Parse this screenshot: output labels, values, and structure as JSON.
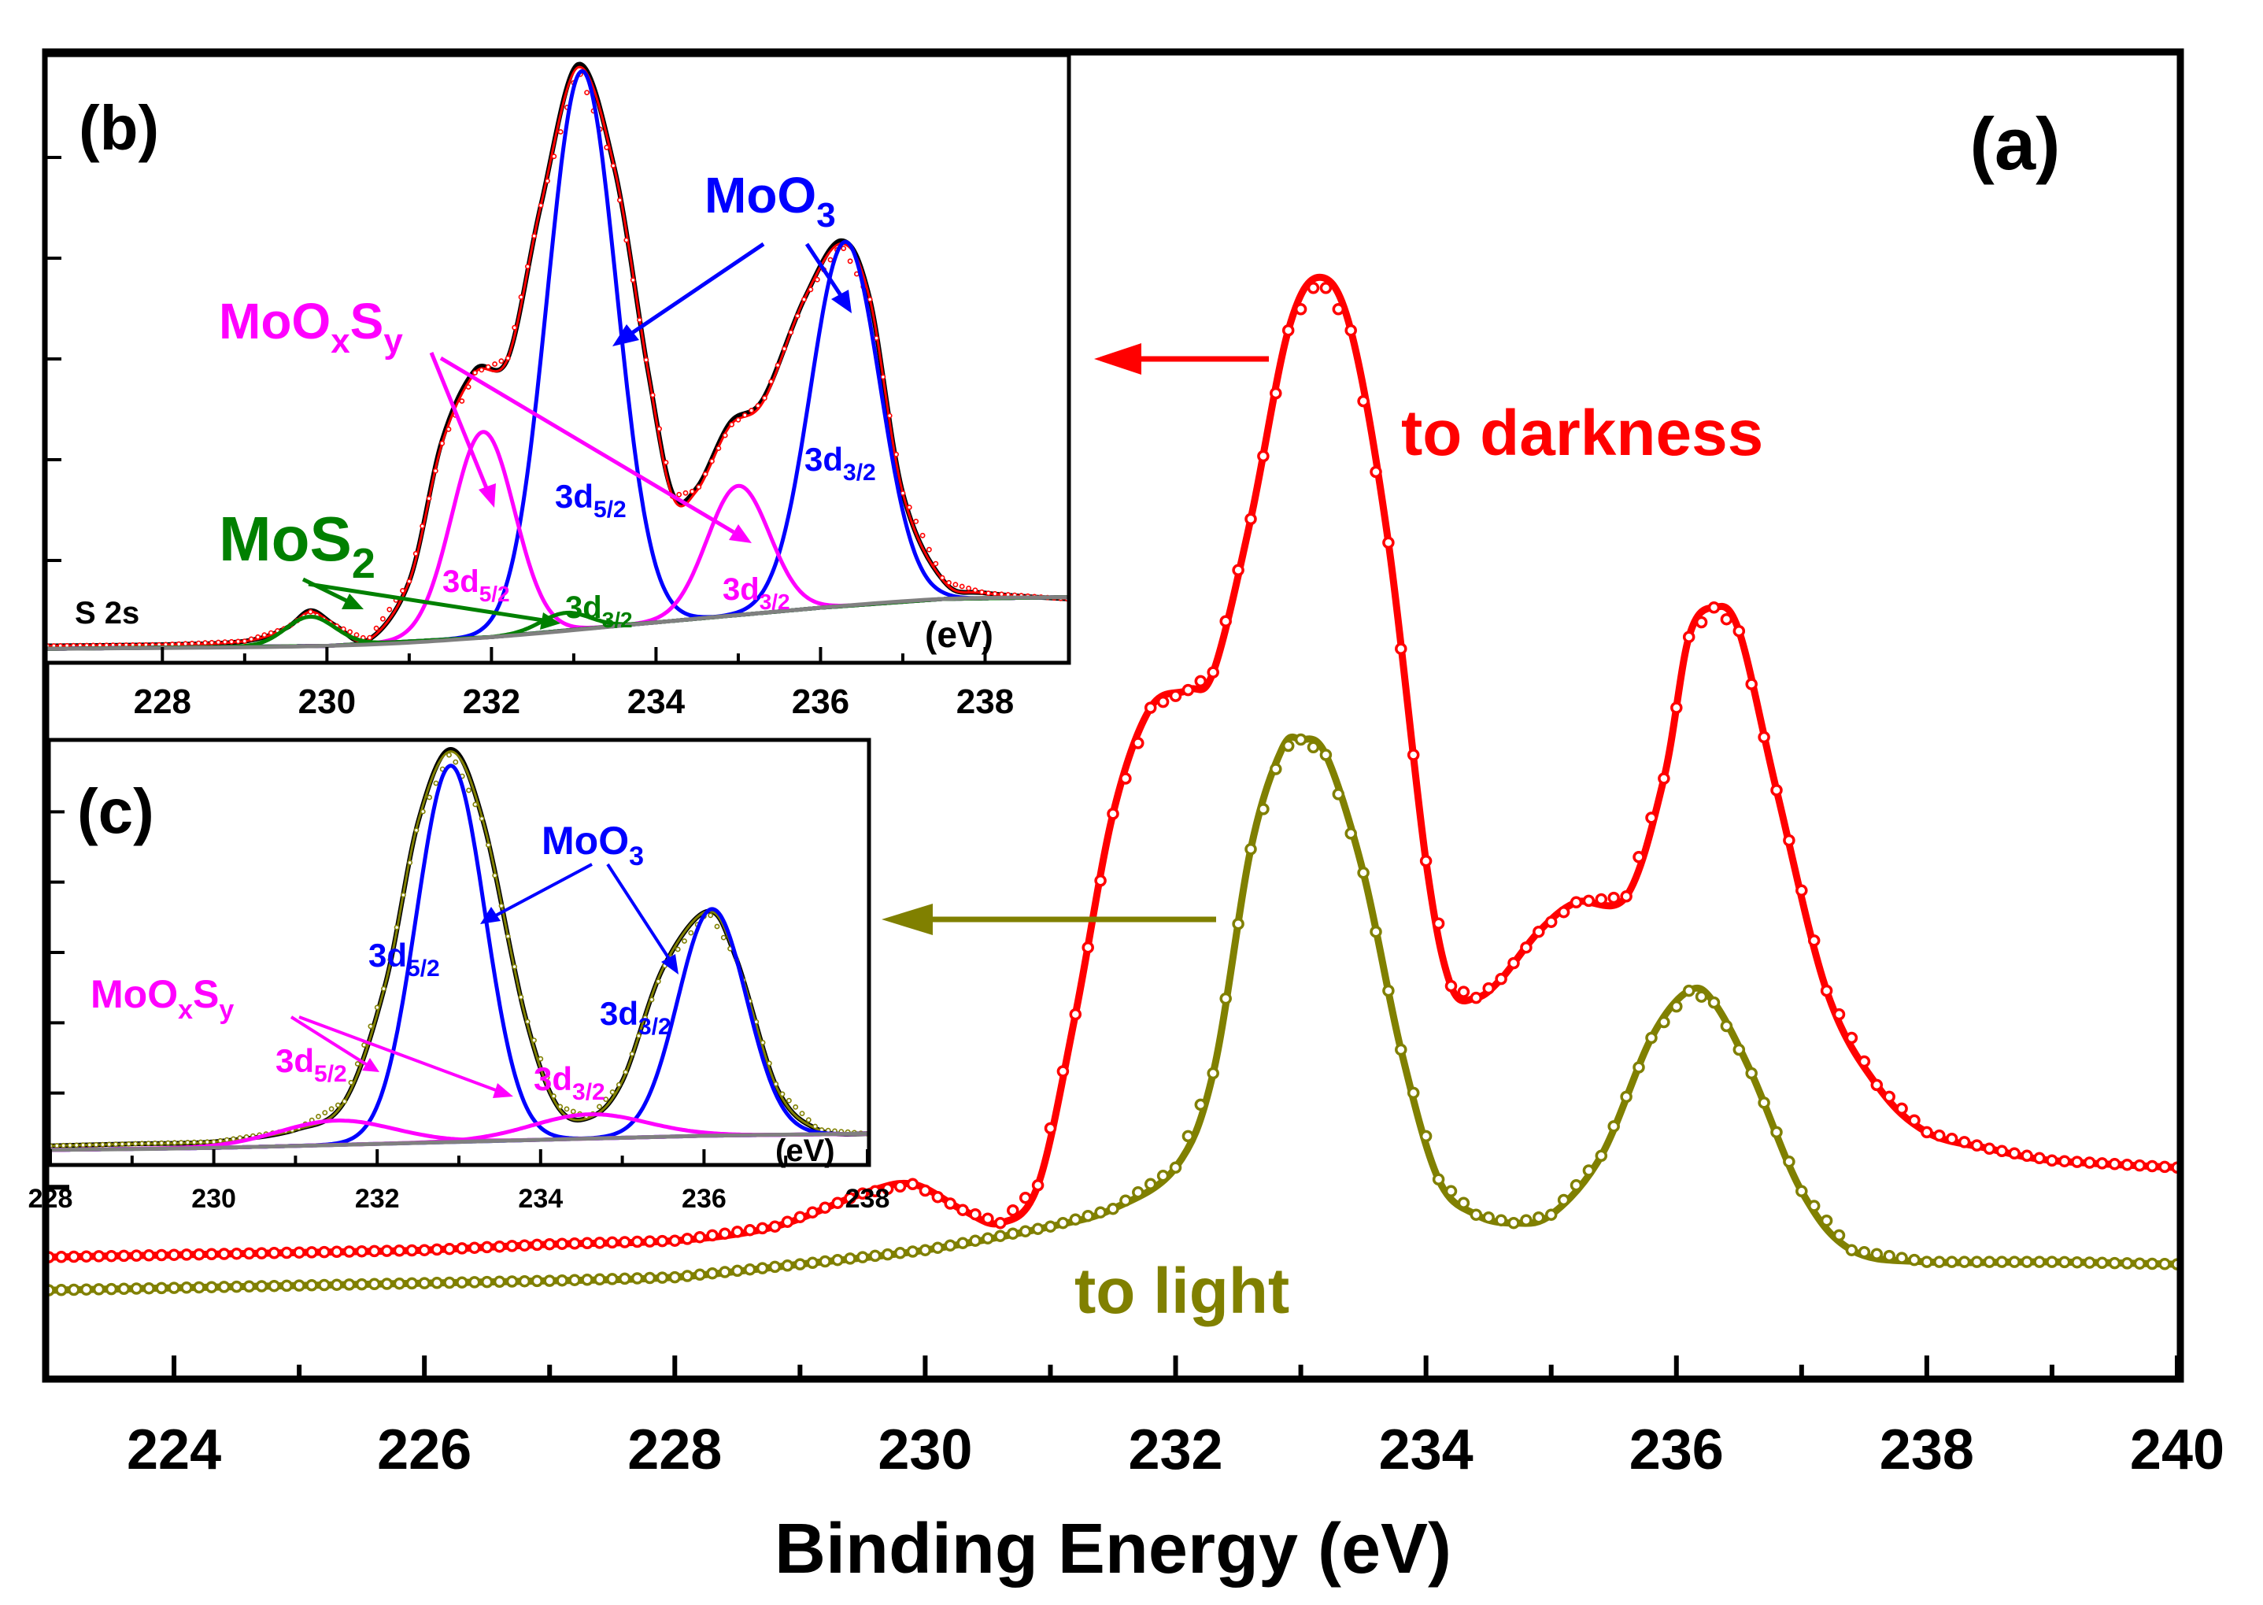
{
  "chart_data": [
    {
      "id": "a",
      "type": "line",
      "panel_label": "(a)",
      "xlabel": "Binding Energy (eV)",
      "ylabel": "",
      "xlim": [
        223,
        240
      ],
      "ylim": [
        0,
        1
      ],
      "x_ticks": [
        224,
        226,
        228,
        230,
        232,
        234,
        236,
        238,
        240
      ],
      "y_ticks_labeled": false,
      "grid": false,
      "series": [
        {
          "name": "to darkness",
          "color": "#ff0000",
          "marker": "open-circle",
          "points": [
            [
              223,
              0.074
            ],
            [
              224,
              0.076
            ],
            [
              225,
              0.078
            ],
            [
              226,
              0.08
            ],
            [
              227,
              0.085
            ],
            [
              228,
              0.088
            ],
            [
              228.8,
              0.1
            ],
            [
              229.5,
              0.128
            ],
            [
              229.9,
              0.136
            ],
            [
              230.3,
              0.114
            ],
            [
              230.6,
              0.103
            ],
            [
              230.9,
              0.135
            ],
            [
              231.2,
              0.28
            ],
            [
              231.5,
              0.45
            ],
            [
              231.8,
              0.54
            ],
            [
              232.1,
              0.555
            ],
            [
              232.3,
              0.57
            ],
            [
              232.6,
              0.7
            ],
            [
              232.9,
              0.86
            ],
            [
              233.15,
              0.905
            ],
            [
              233.4,
              0.86
            ],
            [
              233.7,
              0.68
            ],
            [
              234.0,
              0.41
            ],
            [
              234.2,
              0.304
            ],
            [
              234.4,
              0.294
            ],
            [
              234.6,
              0.31
            ],
            [
              234.9,
              0.35
            ],
            [
              235.2,
              0.375
            ],
            [
              235.6,
              0.38
            ],
            [
              235.9,
              0.48
            ],
            [
              236.1,
              0.6
            ],
            [
              236.3,
              0.625
            ],
            [
              236.5,
              0.605
            ],
            [
              236.8,
              0.47
            ],
            [
              237.2,
              0.3
            ],
            [
              237.6,
              0.22
            ],
            [
              238.0,
              0.18
            ],
            [
              238.5,
              0.166
            ],
            [
              239,
              0.156
            ],
            [
              240,
              0.15
            ]
          ]
        },
        {
          "name": "to light",
          "color": "#808000",
          "marker": "open-circle",
          "points": [
            [
              223,
              0.046
            ],
            [
              224,
              0.048
            ],
            [
              225,
              0.05
            ],
            [
              226,
              0.052
            ],
            [
              227,
              0.054
            ],
            [
              228,
              0.057
            ],
            [
              229,
              0.068
            ],
            [
              230,
              0.08
            ],
            [
              231,
              0.1
            ],
            [
              231.5,
              0.115
            ],
            [
              232,
              0.15
            ],
            [
              232.3,
              0.23
            ],
            [
              232.6,
              0.42
            ],
            [
              232.85,
              0.505
            ],
            [
              233.0,
              0.513
            ],
            [
              233.2,
              0.5
            ],
            [
              233.5,
              0.4
            ],
            [
              233.8,
              0.25
            ],
            [
              234.1,
              0.14
            ],
            [
              234.4,
              0.11
            ],
            [
              234.7,
              0.103
            ],
            [
              235.0,
              0.11
            ],
            [
              235.4,
              0.16
            ],
            [
              235.8,
              0.26
            ],
            [
              236.1,
              0.3
            ],
            [
              236.3,
              0.29
            ],
            [
              236.6,
              0.23
            ],
            [
              237.0,
              0.13
            ],
            [
              237.4,
              0.08
            ],
            [
              238,
              0.07
            ],
            [
              239,
              0.07
            ],
            [
              240,
              0.068
            ]
          ]
        }
      ],
      "annotations": [
        "to darkness",
        "to light"
      ]
    },
    {
      "id": "b",
      "type": "line",
      "panel_label": "(b)",
      "axis_note": "(eV)",
      "xlim": [
        226.6,
        239
      ],
      "ylim": [
        0,
        1
      ],
      "x_ticks": [
        228,
        230,
        232,
        234,
        236,
        238
      ],
      "y_ticks_labeled": false,
      "components": [
        {
          "color": "#000000",
          "kind": "raw",
          "points": [
            [
              226.6,
              0.01
            ],
            [
              228,
              0.012
            ],
            [
              229,
              0.018
            ],
            [
              229.5,
              0.04
            ],
            [
              229.8,
              0.07
            ],
            [
              230.1,
              0.045
            ],
            [
              230.5,
              0.02
            ],
            [
              231,
              0.12
            ],
            [
              231.4,
              0.36
            ],
            [
              231.8,
              0.48
            ],
            [
              232.2,
              0.5
            ],
            [
              232.6,
              0.76
            ],
            [
              233.05,
              1.0
            ],
            [
              233.5,
              0.82
            ],
            [
              233.9,
              0.48
            ],
            [
              234.2,
              0.27
            ],
            [
              234.5,
              0.28
            ],
            [
              234.9,
              0.39
            ],
            [
              235.3,
              0.43
            ],
            [
              235.8,
              0.6
            ],
            [
              236.25,
              0.7
            ],
            [
              236.6,
              0.6
            ],
            [
              237,
              0.27
            ],
            [
              237.5,
              0.12
            ],
            [
              238,
              0.1
            ],
            [
              239,
              0.09
            ]
          ]
        },
        {
          "color": "#ff0000",
          "kind": "envelope",
          "points": [
            [
              226.6,
              0.01
            ],
            [
              228,
              0.012
            ],
            [
              229,
              0.018
            ],
            [
              229.5,
              0.04
            ],
            [
              229.8,
              0.068
            ],
            [
              230.1,
              0.045
            ],
            [
              230.5,
              0.02
            ],
            [
              231,
              0.12
            ],
            [
              231.4,
              0.355
            ],
            [
              231.8,
              0.475
            ],
            [
              232.2,
              0.5
            ],
            [
              232.6,
              0.76
            ],
            [
              233.05,
              0.995
            ],
            [
              233.5,
              0.82
            ],
            [
              233.9,
              0.48
            ],
            [
              234.2,
              0.265
            ],
            [
              234.5,
              0.275
            ],
            [
              234.9,
              0.385
            ],
            [
              235.3,
              0.425
            ],
            [
              235.8,
              0.6
            ],
            [
              236.25,
              0.695
            ],
            [
              236.6,
              0.6
            ],
            [
              237,
              0.27
            ],
            [
              237.5,
              0.12
            ],
            [
              238,
              0.1
            ],
            [
              239,
              0.09
            ]
          ]
        },
        {
          "color": "#0000ff",
          "kind": "gaussian",
          "label": "MoO3 3d5/2",
          "center": 233.1,
          "sigma": 0.42,
          "height": 0.95
        },
        {
          "color": "#0000ff",
          "kind": "gaussian",
          "label": "MoO3 3d3/2",
          "center": 236.3,
          "sigma": 0.42,
          "height": 0.62
        },
        {
          "color": "#ff00ff",
          "kind": "gaussian",
          "label": "MoOxSy 3d5/2",
          "center": 231.9,
          "sigma": 0.38,
          "height": 0.35
        },
        {
          "color": "#ff00ff",
          "kind": "gaussian",
          "label": "MoOxSy 3d3/2",
          "center": 235.0,
          "sigma": 0.38,
          "height": 0.22
        },
        {
          "color": "#008000",
          "kind": "gaussian",
          "label": "MoS2 3d5/2",
          "center": 229.8,
          "sigma": 0.3,
          "height": 0.05
        },
        {
          "color": "#008000",
          "kind": "gaussian",
          "label": "MoS2 3d3/2",
          "center": 232.9,
          "sigma": 0.3,
          "height": 0.03
        },
        {
          "color": "#808080",
          "kind": "background",
          "points": [
            [
              226.6,
              0.005
            ],
            [
              230,
              0.01
            ],
            [
              232,
              0.025
            ],
            [
              234,
              0.05
            ],
            [
              236,
              0.075
            ],
            [
              237.5,
              0.09
            ],
            [
              239,
              0.093
            ]
          ]
        }
      ],
      "labels": {
        "moo3": "MoO",
        "moo3_sub": "3",
        "moxsy": "MoO",
        "moxsy_sub1": "x",
        "moxsy_s": "S",
        "moxsy_sub2": "y",
        "mos2": "MoS",
        "mos2_sub": "2",
        "s2s": "S 2s",
        "d52_prefix": "3d",
        "d52_sub": "5/2",
        "d32_prefix": "3d",
        "d32_sub": "3/2"
      }
    },
    {
      "id": "c",
      "type": "line",
      "panel_label": "(c)",
      "axis_note": "(eV)",
      "xlim": [
        228,
        238
      ],
      "ylim": [
        0,
        1
      ],
      "x_ticks": [
        228,
        230,
        232,
        234,
        236,
        238
      ],
      "y_ticks_labeled": false,
      "components": [
        {
          "color": "#000000",
          "kind": "raw",
          "points": [
            [
              228,
              0.02
            ],
            [
              229,
              0.025
            ],
            [
              230,
              0.03
            ],
            [
              231,
              0.06
            ],
            [
              231.6,
              0.13
            ],
            [
              232.1,
              0.42
            ],
            [
              232.5,
              0.82
            ],
            [
              232.9,
              1.0
            ],
            [
              233.3,
              0.82
            ],
            [
              233.8,
              0.35
            ],
            [
              234.2,
              0.12
            ],
            [
              234.6,
              0.09
            ],
            [
              235.0,
              0.18
            ],
            [
              235.5,
              0.46
            ],
            [
              236.05,
              0.6
            ],
            [
              236.4,
              0.48
            ],
            [
              236.9,
              0.16
            ],
            [
              237.4,
              0.06
            ],
            [
              238,
              0.05
            ]
          ]
        },
        {
          "color": "#808000",
          "kind": "envelope",
          "points": [
            [
              228,
              0.02
            ],
            [
              229,
              0.025
            ],
            [
              230,
              0.03
            ],
            [
              231,
              0.06
            ],
            [
              231.6,
              0.13
            ],
            [
              232.1,
              0.42
            ],
            [
              232.5,
              0.82
            ],
            [
              232.9,
              0.995
            ],
            [
              233.3,
              0.82
            ],
            [
              233.8,
              0.35
            ],
            [
              234.2,
              0.12
            ],
            [
              234.6,
              0.09
            ],
            [
              235.0,
              0.18
            ],
            [
              235.5,
              0.46
            ],
            [
              236.05,
              0.6
            ],
            [
              236.4,
              0.48
            ],
            [
              236.9,
              0.16
            ],
            [
              237.4,
              0.06
            ],
            [
              238,
              0.05
            ]
          ]
        },
        {
          "color": "#0000ff",
          "kind": "gaussian",
          "label": "MoO3 3d5/2",
          "center": 232.9,
          "sigma": 0.42,
          "height": 0.93
        },
        {
          "color": "#0000ff",
          "kind": "gaussian",
          "label": "MoO3 3d3/2",
          "center": 236.1,
          "sigma": 0.42,
          "height": 0.56
        },
        {
          "color": "#ff00ff",
          "kind": "gaussian",
          "label": "MoOxSy 3d5/2",
          "center": 231.5,
          "sigma": 0.7,
          "height": 0.06
        },
        {
          "color": "#ff00ff",
          "kind": "gaussian",
          "label": "MoOxSy 3d3/2",
          "center": 234.6,
          "sigma": 0.7,
          "height": 0.06
        },
        {
          "color": "#808080",
          "kind": "background",
          "points": [
            [
              228,
              0.01
            ],
            [
              230,
              0.015
            ],
            [
              232,
              0.025
            ],
            [
              234,
              0.035
            ],
            [
              236,
              0.045
            ],
            [
              238,
              0.05
            ]
          ]
        }
      ],
      "labels": {
        "moo3": "MoO",
        "moo3_sub": "3",
        "moxsy": "MoO",
        "moxsy_sub1": "x",
        "moxsy_s": "S",
        "moxsy_sub2": "y",
        "d52_prefix": "3d",
        "d52_sub": "5/2",
        "d32_prefix": "3d",
        "d32_sub": "3/2"
      }
    }
  ]
}
